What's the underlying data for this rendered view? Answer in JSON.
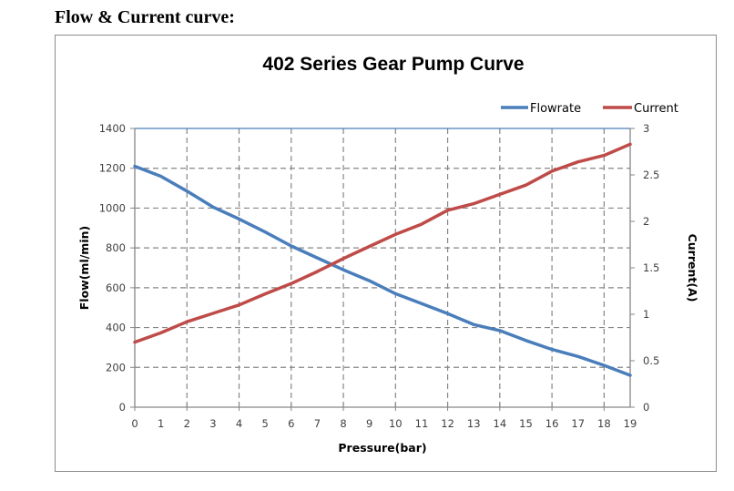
{
  "page": {
    "heading": "Flow & Current curve:"
  },
  "chart_data": {
    "type": "line",
    "title": "402 Series Gear Pump Curve",
    "xlabel": "Pressure(bar)",
    "ylabel": "Flow(ml/min)",
    "y2label": "Current(A)",
    "x": [
      0,
      1,
      2,
      3,
      4,
      5,
      6,
      7,
      8,
      9,
      10,
      11,
      12,
      13,
      14,
      15,
      16,
      17,
      18,
      19
    ],
    "xlim": [
      0,
      19
    ],
    "ylim": [
      0,
      1400
    ],
    "y2lim": [
      0,
      3
    ],
    "x_ticks": [
      "0",
      "1",
      "2",
      "3",
      "4",
      "5",
      "6",
      "7",
      "8",
      "9",
      "10",
      "11",
      "12",
      "13",
      "14",
      "15",
      "16",
      "17",
      "18",
      "19"
    ],
    "y_ticks": [
      "0",
      "200",
      "400",
      "600",
      "800",
      "1000",
      "1200",
      "1400"
    ],
    "y2_ticks": [
      "0",
      "0.5",
      "1",
      "1.5",
      "2",
      "2.5",
      "3"
    ],
    "grid": true,
    "legend": "top-right",
    "series": [
      {
        "name": "Flowrate",
        "axis": "left",
        "color": "#4a7ebb",
        "values": [
          1210,
          1160,
          1085,
          1005,
          945,
          880,
          810,
          750,
          690,
          635,
          570,
          520,
          470,
          415,
          385,
          335,
          290,
          255,
          210,
          160
        ]
      },
      {
        "name": "Current",
        "axis": "right",
        "color": "#be4b48",
        "values": [
          0.7,
          0.8,
          0.92,
          1.01,
          1.1,
          1.22,
          1.33,
          1.46,
          1.6,
          1.73,
          1.86,
          1.97,
          2.12,
          2.19,
          2.29,
          2.39,
          2.54,
          2.64,
          2.71,
          2.83
        ]
      }
    ]
  }
}
